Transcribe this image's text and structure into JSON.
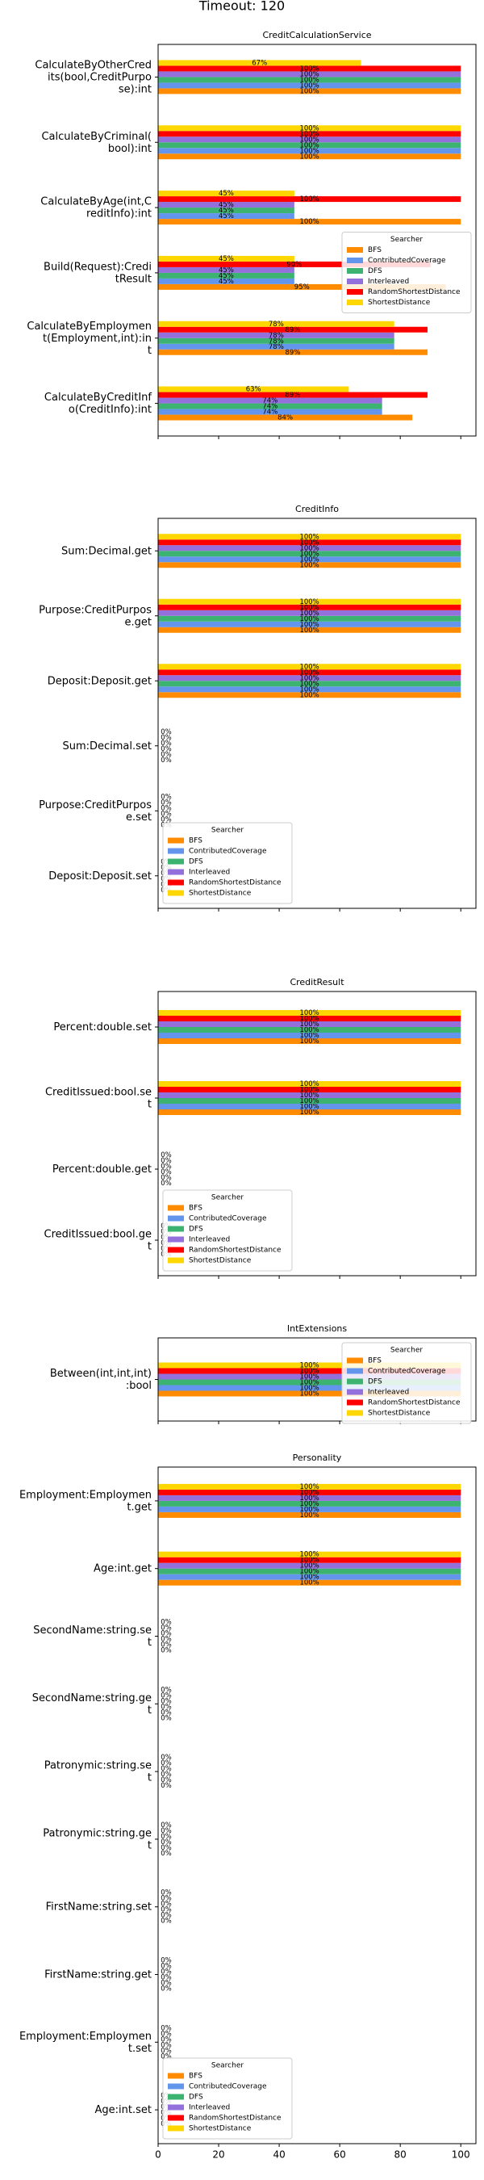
{
  "title": "Timeout: 120",
  "chart_data": [
    {
      "type": "bar",
      "orientation": "horizontal",
      "title": "CreditCalculationService",
      "categories": [
        "CalculateByOtherCred\nits(bool,CreditPurpo\nse):int",
        "CalculateByCriminal(\nbool):int",
        "CalculateByAge(int,C\nreditInfo):int",
        "Build(Request):Credi\ntResult",
        "CalculateByEmploymen\nt(Employment,int):in\nt",
        "CalculateByCreditInf\no(CreditInfo):int"
      ],
      "series": [
        {
          "name": "BFS",
          "color": "#ff8c00",
          "values": [
            100,
            100,
            100,
            95,
            89,
            84
          ],
          "value_labels": [
            "100%",
            "100%",
            "100%",
            "95%",
            "89%",
            "84%"
          ]
        },
        {
          "name": "ContributedCoverage",
          "color": "#6495ed",
          "values": [
            100,
            100,
            45,
            45,
            78,
            74
          ],
          "value_labels": [
            "100%",
            "100%",
            "45%",
            "45%",
            "78%",
            "74%"
          ]
        },
        {
          "name": "DFS",
          "color": "#3cb371",
          "values": [
            100,
            100,
            45,
            45,
            78,
            74
          ],
          "value_labels": [
            "100%",
            "100%",
            "45%",
            "45%",
            "78%",
            "74%"
          ]
        },
        {
          "name": "Interleaved",
          "color": "#9370db",
          "values": [
            100,
            100,
            45,
            45,
            78,
            74
          ],
          "value_labels": [
            "100%",
            "100%",
            "45%",
            "45%",
            "78%",
            "74%"
          ]
        },
        {
          "name": "RandomShortestDistance",
          "color": "#ff0000",
          "values": [
            100,
            100,
            100,
            90,
            89,
            89
          ],
          "value_labels": [
            "100%",
            "100%",
            "100%",
            "90%",
            "89%",
            "89%"
          ]
        },
        {
          "name": "ShortestDistance",
          "color": "#ffd700",
          "values": [
            67,
            100,
            45,
            45,
            78,
            63
          ],
          "value_labels": [
            "67%",
            "100%",
            "45%",
            "45%",
            "78%",
            "63%"
          ]
        }
      ],
      "xlim": [
        0,
        105
      ],
      "xticks": [
        0,
        20,
        40,
        60,
        80,
        100
      ],
      "legend": "center right",
      "legend_title": "Searcher"
    },
    {
      "type": "bar",
      "orientation": "horizontal",
      "title": "CreditInfo",
      "categories": [
        "Sum:Decimal.get",
        "Purpose:CreditPurpos\ne.get",
        "Deposit:Deposit.get",
        "Sum:Decimal.set",
        "Purpose:CreditPurpos\ne.set",
        "Deposit:Deposit.set"
      ],
      "series": [
        {
          "name": "BFS",
          "color": "#ff8c00",
          "values": [
            100,
            100,
            100,
            0,
            0,
            0
          ],
          "value_labels": [
            "100%",
            "100%",
            "100%",
            "0%",
            "0%",
            "0%"
          ]
        },
        {
          "name": "ContributedCoverage",
          "color": "#6495ed",
          "values": [
            100,
            100,
            100,
            0,
            0,
            0
          ],
          "value_labels": [
            "100%",
            "100%",
            "100%",
            "0%",
            "0%",
            "0%"
          ]
        },
        {
          "name": "DFS",
          "color": "#3cb371",
          "values": [
            100,
            100,
            100,
            0,
            0,
            0
          ],
          "value_labels": [
            "100%",
            "100%",
            "100%",
            "0%",
            "0%",
            "0%"
          ]
        },
        {
          "name": "Interleaved",
          "color": "#9370db",
          "values": [
            100,
            100,
            100,
            0,
            0,
            0
          ],
          "value_labels": [
            "100%",
            "100%",
            "100%",
            "0%",
            "0%",
            "0%"
          ]
        },
        {
          "name": "RandomShortestDistance",
          "color": "#ff0000",
          "values": [
            100,
            100,
            100,
            0,
            0,
            0
          ],
          "value_labels": [
            "100%",
            "100%",
            "100%",
            "0%",
            "0%",
            "0%"
          ]
        },
        {
          "name": "ShortestDistance",
          "color": "#ffd700",
          "values": [
            100,
            100,
            100,
            0,
            0,
            0
          ],
          "value_labels": [
            "100%",
            "100%",
            "100%",
            "0%",
            "0%",
            "0%"
          ]
        }
      ],
      "xlim": [
        0,
        105
      ],
      "xticks": [
        0,
        20,
        40,
        60,
        80,
        100
      ],
      "legend": "lower left",
      "legend_title": "Searcher"
    },
    {
      "type": "bar",
      "orientation": "horizontal",
      "title": "CreditResult",
      "categories": [
        "Percent:double.set",
        "CreditIssued:bool.se\nt",
        "Percent:double.get",
        "CreditIssued:bool.ge\nt"
      ],
      "series": [
        {
          "name": "BFS",
          "color": "#ff8c00",
          "values": [
            100,
            100,
            0,
            0
          ],
          "value_labels": [
            "100%",
            "100%",
            "0%",
            "0%"
          ]
        },
        {
          "name": "ContributedCoverage",
          "color": "#6495ed",
          "values": [
            100,
            100,
            0,
            0
          ],
          "value_labels": [
            "100%",
            "100%",
            "0%",
            "0%"
          ]
        },
        {
          "name": "DFS",
          "color": "#3cb371",
          "values": [
            100,
            100,
            0,
            0
          ],
          "value_labels": [
            "100%",
            "100%",
            "0%",
            "0%"
          ]
        },
        {
          "name": "Interleaved",
          "color": "#9370db",
          "values": [
            100,
            100,
            0,
            0
          ],
          "value_labels": [
            "100%",
            "100%",
            "0%",
            "0%"
          ]
        },
        {
          "name": "RandomShortestDistance",
          "color": "#ff0000",
          "values": [
            100,
            100,
            0,
            0
          ],
          "value_labels": [
            "100%",
            "100%",
            "0%",
            "0%"
          ]
        },
        {
          "name": "ShortestDistance",
          "color": "#ffd700",
          "values": [
            100,
            100,
            0,
            0
          ],
          "value_labels": [
            "100%",
            "100%",
            "0%",
            "0%"
          ]
        }
      ],
      "xlim": [
        0,
        105
      ],
      "xticks": [
        0,
        20,
        40,
        60,
        80,
        100
      ],
      "legend": "lower left",
      "legend_title": "Searcher"
    },
    {
      "type": "bar",
      "orientation": "horizontal",
      "title": "IntExtensions",
      "categories": [
        "Between(int,int,int)\n:bool"
      ],
      "series": [
        {
          "name": "BFS",
          "color": "#ff8c00",
          "values": [
            100
          ],
          "value_labels": [
            "100%"
          ]
        },
        {
          "name": "ContributedCoverage",
          "color": "#6495ed",
          "values": [
            100
          ],
          "value_labels": [
            "100%"
          ]
        },
        {
          "name": "DFS",
          "color": "#3cb371",
          "values": [
            100
          ],
          "value_labels": [
            "100%"
          ]
        },
        {
          "name": "Interleaved",
          "color": "#9370db",
          "values": [
            100
          ],
          "value_labels": [
            "100%"
          ]
        },
        {
          "name": "RandomShortestDistance",
          "color": "#ff0000",
          "values": [
            100
          ],
          "value_labels": [
            "100%"
          ]
        },
        {
          "name": "ShortestDistance",
          "color": "#ffd700",
          "values": [
            100
          ],
          "value_labels": [
            "100%"
          ]
        }
      ],
      "xlim": [
        0,
        105
      ],
      "xticks": [
        0,
        20,
        40,
        60,
        80,
        100
      ],
      "legend": "upper right",
      "legend_title": "Searcher"
    },
    {
      "type": "bar",
      "orientation": "horizontal",
      "title": "Personality",
      "categories": [
        "Employment:Employmen\nt.get",
        "Age:int.get",
        "SecondName:string.se\nt",
        "SecondName:string.ge\nt",
        "Patronymic:string.se\nt",
        "Patronymic:string.ge\nt",
        "FirstName:string.set",
        "FirstName:string.get",
        "Employment:Employmen\nt.set",
        "Age:int.set"
      ],
      "series": [
        {
          "name": "BFS",
          "color": "#ff8c00",
          "values": [
            100,
            100,
            0,
            0,
            0,
            0,
            0,
            0,
            0,
            0
          ],
          "value_labels": [
            "100%",
            "100%",
            "0%",
            "0%",
            "0%",
            "0%",
            "0%",
            "0%",
            "0%",
            "0%"
          ]
        },
        {
          "name": "ContributedCoverage",
          "color": "#6495ed",
          "values": [
            100,
            100,
            0,
            0,
            0,
            0,
            0,
            0,
            0,
            0
          ],
          "value_labels": [
            "100%",
            "100%",
            "0%",
            "0%",
            "0%",
            "0%",
            "0%",
            "0%",
            "0%",
            "0%"
          ]
        },
        {
          "name": "DFS",
          "color": "#3cb371",
          "values": [
            100,
            100,
            0,
            0,
            0,
            0,
            0,
            0,
            0,
            0
          ],
          "value_labels": [
            "100%",
            "100%",
            "0%",
            "0%",
            "0%",
            "0%",
            "0%",
            "0%",
            "0%",
            "0%"
          ]
        },
        {
          "name": "Interleaved",
          "color": "#9370db",
          "values": [
            100,
            100,
            0,
            0,
            0,
            0,
            0,
            0,
            0,
            0
          ],
          "value_labels": [
            "100%",
            "100%",
            "0%",
            "0%",
            "0%",
            "0%",
            "0%",
            "0%",
            "0%",
            "0%"
          ]
        },
        {
          "name": "RandomShortestDistance",
          "color": "#ff0000",
          "values": [
            100,
            100,
            0,
            0,
            0,
            0,
            0,
            0,
            0,
            0
          ],
          "value_labels": [
            "100%",
            "100%",
            "0%",
            "0%",
            "0%",
            "0%",
            "0%",
            "0%",
            "0%",
            "0%"
          ]
        },
        {
          "name": "ShortestDistance",
          "color": "#ffd700",
          "values": [
            100,
            100,
            0,
            0,
            0,
            0,
            0,
            0,
            0,
            0
          ],
          "value_labels": [
            "100%",
            "100%",
            "0%",
            "0%",
            "0%",
            "0%",
            "0%",
            "0%",
            "0%",
            "0%"
          ]
        }
      ],
      "xlim": [
        0,
        105
      ],
      "xticks": [
        0,
        20,
        40,
        60,
        80,
        100
      ],
      "legend": "lower left",
      "legend_title": "Searcher"
    }
  ]
}
